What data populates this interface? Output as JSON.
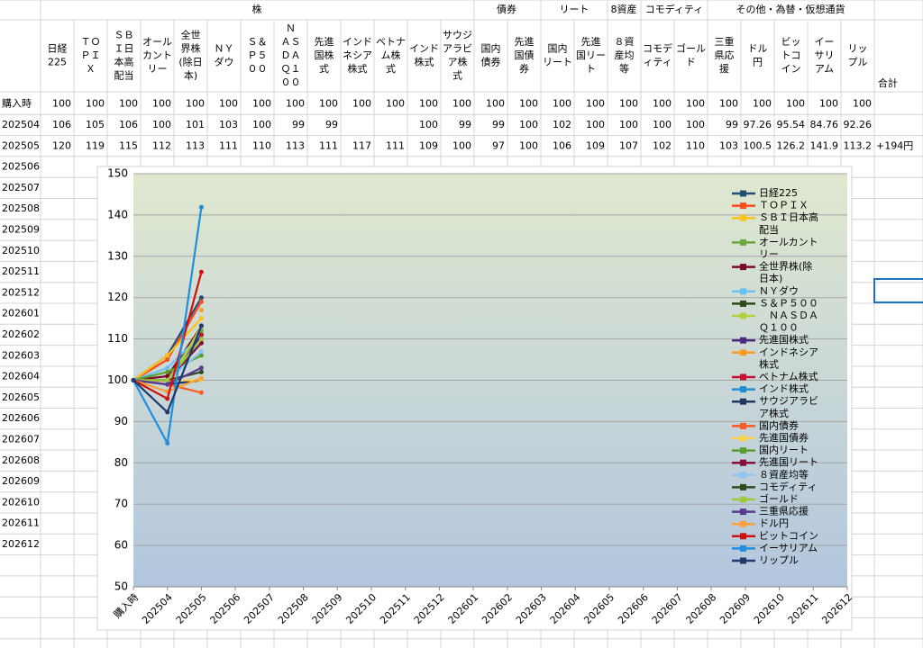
{
  "table": {
    "groups": [
      "株",
      "債券",
      "リート",
      "8資産",
      "コモディティ",
      "その他・為替・仮想通貨"
    ],
    "columns": [
      "日経\n225",
      "ＴＯ\nＰＩ\nＸ",
      "ＳＢ\nＩ日\n本高\n配当",
      "オール\nカント\nリー",
      "全世\n界株\n(除日\n本)",
      "ＮＹ\nダウ",
      "Ｓ＆\nＰ５\n００",
      "Ｎ\nＡＳ\nＤＡ\nＱ１\n００",
      "先進\n国株\n式",
      "インド\nネシア\n株式",
      "ベトナ\nム株\n式",
      "インド\n株式",
      "サウジ\nアラビ\nア株\n式",
      "国内\n債券",
      "先進\n国債\n券",
      "国内\nリート",
      "先進\n国リー\nト",
      "８資\n産均\n等",
      "コモデ\nィティ",
      "ゴール\nド",
      "三重\n県応\n援",
      "ドル\n円",
      "ビッ\nトコ\nイン",
      "イー\nサリ\nアム",
      "リッ\nプル"
    ],
    "total_header": "合計",
    "rows": [
      {
        "label": "購入時",
        "values": [
          100,
          100,
          100,
          100,
          100,
          100,
          100,
          100,
          100,
          100,
          100,
          100,
          100,
          100,
          100,
          100,
          100,
          100,
          100,
          100,
          100,
          100,
          100,
          100,
          100
        ]
      },
      {
        "label": "202504",
        "values": [
          106,
          105,
          106,
          100,
          101,
          103,
          100,
          99,
          99,
          null,
          null,
          100,
          99,
          99,
          100,
          102,
          100,
          100,
          100,
          100,
          99,
          97.26,
          95.54,
          84.76,
          92.26
        ]
      },
      {
        "label": "202505",
        "values": [
          120,
          119,
          115,
          112,
          113,
          111,
          110,
          113,
          111,
          117,
          111,
          109,
          100,
          97,
          100,
          106,
          109,
          107,
          102,
          110,
          103,
          100.5,
          126.2,
          141.9,
          113.2
        ],
        "total": "+194円"
      }
    ],
    "more_rows": [
      "202506",
      "202507",
      "202508",
      "202509",
      "202510",
      "202511",
      "202512",
      "202601",
      "202602",
      "202603",
      "202604",
      "202605",
      "202606",
      "202607",
      "202608",
      "202609",
      "202610",
      "202611",
      "202612"
    ]
  },
  "chart_data": {
    "type": "line",
    "categories": [
      "購入時",
      "202504",
      "202505",
      "202506",
      "202507",
      "202508",
      "202509",
      "202510",
      "202511",
      "202512",
      "202601",
      "202602",
      "202603",
      "202604",
      "202605",
      "202606",
      "202607",
      "202608",
      "202609",
      "202610",
      "202611",
      "202612"
    ],
    "ylim": [
      50,
      150
    ],
    "yticks": [
      50,
      60,
      70,
      80,
      90,
      100,
      110,
      120,
      130,
      140,
      150
    ],
    "grid": true,
    "legend": "right",
    "series": [
      {
        "name": "日経225",
        "color": "#1f4e79",
        "values": [
          100,
          106,
          120,
          null,
          null,
          null,
          null,
          null,
          null,
          null,
          null,
          null,
          null,
          null,
          null,
          null,
          null,
          null,
          null,
          null,
          null,
          null
        ]
      },
      {
        "name": "ＴＯＰＩＸ",
        "color": "#ff4a1c",
        "values": [
          100,
          105,
          119,
          null,
          null,
          null,
          null,
          null,
          null,
          null,
          null,
          null,
          null,
          null,
          null,
          null,
          null,
          null,
          null,
          null,
          null,
          null
        ]
      },
      {
        "name": "ＳＢＩ日本高配当",
        "color": "#ffc20e",
        "values": [
          100,
          106,
          115,
          null,
          null,
          null,
          null,
          null,
          null,
          null,
          null,
          null,
          null,
          null,
          null,
          null,
          null,
          null,
          null,
          null,
          null,
          null
        ]
      },
      {
        "name": "オールカントリー",
        "color": "#6aa83a",
        "values": [
          100,
          100,
          112,
          null,
          null,
          null,
          null,
          null,
          null,
          null,
          null,
          null,
          null,
          null,
          null,
          null,
          null,
          null,
          null,
          null,
          null,
          null
        ]
      },
      {
        "name": "全世界株(除日本)",
        "color": "#7b0a2a",
        "values": [
          100,
          101,
          113,
          null,
          null,
          null,
          null,
          null,
          null,
          null,
          null,
          null,
          null,
          null,
          null,
          null,
          null,
          null,
          null,
          null,
          null,
          null
        ]
      },
      {
        "name": "ＮＹダウ",
        "color": "#66c2f5",
        "values": [
          100,
          103,
          111,
          null,
          null,
          null,
          null,
          null,
          null,
          null,
          null,
          null,
          null,
          null,
          null,
          null,
          null,
          null,
          null,
          null,
          null,
          null
        ]
      },
      {
        "name": "Ｓ＆Ｐ５００",
        "color": "#2f4a1a",
        "values": [
          100,
          100,
          110,
          null,
          null,
          null,
          null,
          null,
          null,
          null,
          null,
          null,
          null,
          null,
          null,
          null,
          null,
          null,
          null,
          null,
          null,
          null
        ]
      },
      {
        "name": "　ＮＡＳＤＡＱ１００",
        "color": "#b3d334",
        "values": [
          100,
          99,
          113,
          null,
          null,
          null,
          null,
          null,
          null,
          null,
          null,
          null,
          null,
          null,
          null,
          null,
          null,
          null,
          null,
          null,
          null,
          null
        ]
      },
      {
        "name": "先進国株式",
        "color": "#4b2a84",
        "values": [
          100,
          99,
          111,
          null,
          null,
          null,
          null,
          null,
          null,
          null,
          null,
          null,
          null,
          null,
          null,
          null,
          null,
          null,
          null,
          null,
          null,
          null
        ]
      },
      {
        "name": "インドネシア株式",
        "color": "#ff9a1f",
        "values": [
          100,
          null,
          117,
          null,
          null,
          null,
          null,
          null,
          null,
          null,
          null,
          null,
          null,
          null,
          null,
          null,
          null,
          null,
          null,
          null,
          null,
          null
        ]
      },
      {
        "name": "ベトナム株式",
        "color": "#c8102e",
        "values": [
          100,
          null,
          111,
          null,
          null,
          null,
          null,
          null,
          null,
          null,
          null,
          null,
          null,
          null,
          null,
          null,
          null,
          null,
          null,
          null,
          null,
          null
        ]
      },
      {
        "name": "インド株式",
        "color": "#1f8ed8",
        "values": [
          100,
          100,
          109,
          null,
          null,
          null,
          null,
          null,
          null,
          null,
          null,
          null,
          null,
          null,
          null,
          null,
          null,
          null,
          null,
          null,
          null,
          null
        ]
      },
      {
        "name": "サウジアラビア株式",
        "color": "#1f3864",
        "values": [
          100,
          99,
          100,
          null,
          null,
          null,
          null,
          null,
          null,
          null,
          null,
          null,
          null,
          null,
          null,
          null,
          null,
          null,
          null,
          null,
          null,
          null
        ]
      },
      {
        "name": "国内債券",
        "color": "#ff5a1f",
        "values": [
          100,
          99,
          97,
          null,
          null,
          null,
          null,
          null,
          null,
          null,
          null,
          null,
          null,
          null,
          null,
          null,
          null,
          null,
          null,
          null,
          null,
          null
        ]
      },
      {
        "name": "先進国債券",
        "color": "#ffd34a",
        "values": [
          100,
          100,
          100,
          null,
          null,
          null,
          null,
          null,
          null,
          null,
          null,
          null,
          null,
          null,
          null,
          null,
          null,
          null,
          null,
          null,
          null,
          null
        ]
      },
      {
        "name": "国内リート",
        "color": "#5a9e2c",
        "values": [
          100,
          102,
          106,
          null,
          null,
          null,
          null,
          null,
          null,
          null,
          null,
          null,
          null,
          null,
          null,
          null,
          null,
          null,
          null,
          null,
          null,
          null
        ]
      },
      {
        "name": "先進国リート",
        "color": "#8b0a3a",
        "values": [
          100,
          100,
          109,
          null,
          null,
          null,
          null,
          null,
          null,
          null,
          null,
          null,
          null,
          null,
          null,
          null,
          null,
          null,
          null,
          null,
          null,
          null
        ]
      },
      {
        "name": "８資産均等",
        "color": "#8ec5f5",
        "values": [
          100,
          100,
          107,
          null,
          null,
          null,
          null,
          null,
          null,
          null,
          null,
          null,
          null,
          null,
          null,
          null,
          null,
          null,
          null,
          null,
          null,
          null
        ]
      },
      {
        "name": "コモディティ",
        "color": "#2e4d1a",
        "values": [
          100,
          100,
          102,
          null,
          null,
          null,
          null,
          null,
          null,
          null,
          null,
          null,
          null,
          null,
          null,
          null,
          null,
          null,
          null,
          null,
          null,
          null
        ]
      },
      {
        "name": "ゴールド",
        "color": "#a3c935",
        "values": [
          100,
          100,
          110,
          null,
          null,
          null,
          null,
          null,
          null,
          null,
          null,
          null,
          null,
          null,
          null,
          null,
          null,
          null,
          null,
          null,
          null,
          null
        ]
      },
      {
        "name": "三重県応援",
        "color": "#5b3a96",
        "values": [
          100,
          99,
          103,
          null,
          null,
          null,
          null,
          null,
          null,
          null,
          null,
          null,
          null,
          null,
          null,
          null,
          null,
          null,
          null,
          null,
          null,
          null
        ]
      },
      {
        "name": "ドル円",
        "color": "#ffa030",
        "values": [
          100,
          97.26,
          100.5,
          null,
          null,
          null,
          null,
          null,
          null,
          null,
          null,
          null,
          null,
          null,
          null,
          null,
          null,
          null,
          null,
          null,
          null,
          null
        ]
      },
      {
        "name": "ビットコイン",
        "color": "#d01010",
        "values": [
          100,
          95.54,
          126.2,
          null,
          null,
          null,
          null,
          null,
          null,
          null,
          null,
          null,
          null,
          null,
          null,
          null,
          null,
          null,
          null,
          null,
          null,
          null
        ]
      },
      {
        "name": "イーサリアム",
        "color": "#1e8fe0",
        "values": [
          100,
          84.76,
          141.9,
          null,
          null,
          null,
          null,
          null,
          null,
          null,
          null,
          null,
          null,
          null,
          null,
          null,
          null,
          null,
          null,
          null,
          null,
          null
        ]
      },
      {
        "name": "リップル",
        "color": "#1f3a6e",
        "values": [
          100,
          92.26,
          113.2,
          null,
          null,
          null,
          null,
          null,
          null,
          null,
          null,
          null,
          null,
          null,
          null,
          null,
          null,
          null,
          null,
          null,
          null,
          null
        ]
      }
    ]
  }
}
